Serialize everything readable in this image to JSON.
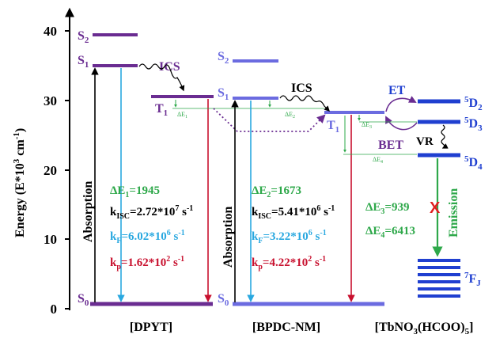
{
  "axis": {
    "ylabel": "Energy (E*10",
    "ylabel_sup": "3",
    "ylabel_tail": " cm",
    "ylabel_sup2": "-1",
    "ylabel_close": ")",
    "ticks": [
      "0",
      "10",
      "20",
      "30",
      "40"
    ]
  },
  "groups": [
    {
      "name": "[DPYT]"
    },
    {
      "name": "[BPDC-NM]"
    },
    {
      "name_main": "[TbNO",
      "name_sub1": "3",
      "name_mid": "(HCOO)",
      "name_sub2": "5",
      "name_end": "]"
    }
  ],
  "dpyt": {
    "s2": "S",
    "s2_sub": "2",
    "s1": "S",
    "s1_sub": "1",
    "t1": "T",
    "t1_sub": "1",
    "s0": "S",
    "s0_sub": "0",
    "ics": "ICS",
    "absorption": "Absorption",
    "de_small": "ΔE",
    "de_small_sub": "1",
    "de_val_a": "ΔE",
    "de_val_sub": "1",
    "de_val_b": "=1945",
    "kisc_a": "k",
    "kisc_sub": "ISC",
    "kisc_b": "=2.72*10",
    "kisc_sup": "7",
    "kisc_c": " s",
    "kisc_sup2": "-1",
    "kf_a": "k",
    "kf_sub": "F",
    "kf_b": "=6.02*10",
    "kf_sup": "6",
    "kf_c": " s",
    "kf_sup2": "-1",
    "kp_a": "k",
    "kp_sub": "p",
    "kp_b": "=1.62*10",
    "kp_sup": "2",
    "kp_c": " s",
    "kp_sup2": "-1"
  },
  "bpdc": {
    "s2": "S",
    "s2_sub": "2",
    "s1": "S",
    "s1_sub": "1",
    "t1": "T",
    "t1_sub": "1",
    "s0": "S",
    "s0_sub": "0",
    "ics": "ICS",
    "absorption": "Absorption",
    "de_small": "ΔE",
    "de_small_sub": "2",
    "de_val_a": "ΔE",
    "de_val_sub": "2",
    "de_val_b": "=1673",
    "kisc_a": "k",
    "kisc_sub": "ISC",
    "kisc_b": "=5.41*10",
    "kisc_sup": "6",
    "kisc_c": " s",
    "kisc_sup2": "-1",
    "kf_a": "k",
    "kf_sub": "F",
    "kf_b": "=3.22*10",
    "kf_sup": "6",
    "kf_c": " s",
    "kf_sup2": "-1",
    "kp_a": "k",
    "kp_sub": "p",
    "kp_b": "=4.22*10",
    "kp_sup": "2",
    "kp_c": " s",
    "kp_sup2": "-1"
  },
  "tb": {
    "et": "ET",
    "bet": "BET",
    "vr": "VR",
    "emission": "Emission",
    "d2": "D",
    "d2_sup": "5",
    "d2_sub": "2",
    "d3": "D",
    "d3_sup": "5",
    "d3_sub": "3",
    "d4": "D",
    "d4_sup": "5",
    "d4_sub": "4",
    "fj": "F",
    "fj_sup": "7",
    "fj_sub": "J",
    "de3_small": "ΔE",
    "de3_small_sub": "3",
    "de4_small": "ΔE",
    "de4_small_sub": "4",
    "de3_a": "ΔE",
    "de3_sub": "3",
    "de3_b": "=939",
    "de4_a": "ΔE",
    "de4_sub": "4",
    "de4_b": "=6413",
    "cross": "X"
  },
  "colors": {
    "dpyt_level": "#6a2c91",
    "bpdc_level": "#6b6be0",
    "tb_level": "#1f3fd0",
    "absorption": "#000000",
    "fluorescence": "#29a8e0",
    "phosphorescence": "#c8102e",
    "green": "#2ea84a"
  }
}
